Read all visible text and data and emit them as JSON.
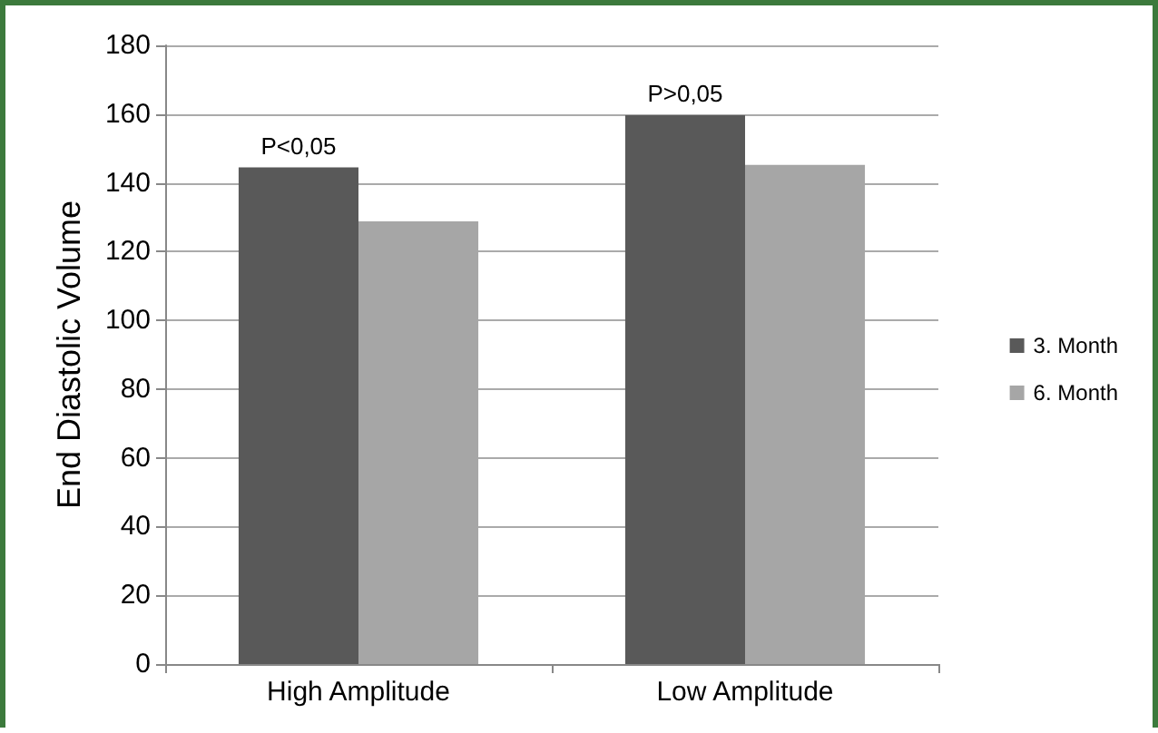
{
  "chart_data": {
    "type": "bar",
    "ylabel": "End Diastolic Volume",
    "categories": [
      "High Amplitude",
      "Low Amplitude"
    ],
    "series": [
      {
        "name": "3. Month",
        "color": "#595959",
        "values": [
          144.5,
          159.7
        ]
      },
      {
        "name": "6. Month",
        "color": "#a6a6a6",
        "values": [
          128.8,
          145.2
        ]
      }
    ],
    "ylim": [
      0,
      180
    ],
    "yticks": [
      0,
      20,
      40,
      60,
      80,
      100,
      120,
      140,
      160,
      180
    ],
    "grid": "y",
    "legend": "right",
    "annotations": [
      {
        "text": "P<0,05",
        "x": "High Amplitude",
        "y": 144.5
      },
      {
        "text": "P>0,05",
        "x": "Low Amplitude",
        "y": 159.7
      }
    ]
  }
}
